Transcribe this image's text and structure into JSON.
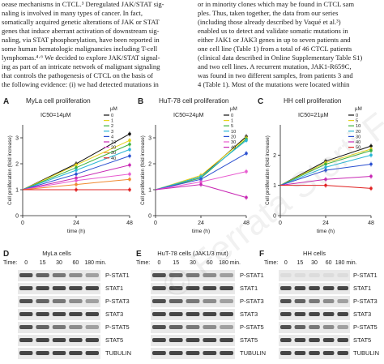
{
  "text": {
    "left_lines": [
      "oease mechanisms in CTCL.³ Deregulated JAK/STAT sig-",
      "naling is involved in many types of cancer. In fact,",
      "somatically acquired genetic alterations of JAK or STAT",
      "genes that induce aberrant activation of downstream sig-",
      "naling, via STAT phosphorylation, have been reported in",
      "some human hematologic malignancies including T-cell",
      "lymphomas.⁴·⁶ We decided to explore JAK/STAT signal-",
      "ing as part of an intricate network of malignant signaling",
      "that controls the pathogenesis of CTCL on the basis of",
      "the following evidence: (i) we had detected mutations in"
    ],
    "right_lines": [
      "or in minority clones which may be found in CTCL sam",
      "ples. Thus, taken together, the data from our series",
      "(including those already described by Vaqué et al.³)",
      "enabled us to detect and validate somatic mutations in",
      "either JAK1 or JAK3 genes in up to seven patients and",
      "one cell line (Table 1) from a total of 46 CTCL patients",
      "(clinical data described in Online Supplementary Table S1)",
      "and two cell lines. A recurrent mutation, JAK1-R659C,",
      "was found in two different samples, from patients 3 and",
      "4 (Table 1). Most of the mutations were located within"
    ],
    "watermark": "© Ferrata Storti Foundation"
  },
  "panels": {
    "A": {
      "letter": "A",
      "title": "MyLa cell proliferation",
      "ic50": "IC50=14µM",
      "ylabel": "Cell proliferation (fold increase)",
      "xlabel": "time (h)"
    },
    "B": {
      "letter": "B",
      "title": "HuT-78 cell proliferation",
      "ic50": "IC50=24µM",
      "ylabel": "Cell proliferation (fold increase)",
      "xlabel": "time (h)"
    },
    "C": {
      "letter": "C",
      "title": "HH cell proliferation",
      "ic50": "IC50=21µM",
      "ylabel": "Cell proliferation (fold increase)",
      "xlabel": "time (h)"
    },
    "D": {
      "letter": "D",
      "title": "MyLa cells",
      "time_label": "Time:",
      "times": [
        "0",
        "15",
        "30",
        "60",
        "180 min."
      ],
      "rows": [
        "P-STAT1",
        "STAT1",
        "P-STAT3",
        "STAT3",
        "P-STAT5",
        "STAT5",
        "TUBULIN"
      ]
    },
    "E": {
      "letter": "E",
      "title": "HuT-78 cells (JAK1/3 mut)",
      "time_label": "Time:",
      "times": [
        "0",
        "15",
        "30",
        "60",
        "180 min."
      ],
      "rows": [
        "P-STAT1",
        "STAT1",
        "P-STAT3",
        "STAT3",
        "P-STAT5",
        "STAT5",
        "TUBULIN"
      ]
    },
    "F": {
      "letter": "F",
      "title": "HH cells",
      "time_label": "Time:",
      "times": [
        "0",
        "15",
        "30",
        "60",
        "180 min."
      ],
      "rows": [
        "P-STAT1",
        "STAT1",
        "P-STAT3",
        "STAT3",
        "P-STAT5",
        "STAT5",
        "TUBULIN"
      ]
    }
  },
  "colors": {
    "black": "#111111",
    "red": "#e02020",
    "yellow": "#e6d21a",
    "green": "#3bb03b",
    "cyan": "#2bb6d6",
    "blue": "#2a4fd0",
    "pink": "#e85bd0",
    "orange": "#f08a30",
    "magenta": "#c828b4"
  },
  "chart_data": [
    {
      "type": "line",
      "panel": "A",
      "title": "MyLa cell proliferation",
      "ylabel": "Cell proliferation (fold increase)",
      "xlabel": "time (h)",
      "x": [
        0,
        24,
        48
      ],
      "ylim": [
        0,
        3.5
      ],
      "yticks": [
        0,
        1,
        2,
        3
      ],
      "legend_title": "µM",
      "annotation": "IC50=14µM",
      "series": [
        {
          "name": "0",
          "color": "#111111",
          "values": [
            1,
            2.0,
            3.15
          ]
        },
        {
          "name": "1",
          "color": "#e6d21a",
          "values": [
            1,
            1.95,
            2.9
          ]
        },
        {
          "name": "2",
          "color": "#3bb03b",
          "values": [
            1,
            1.85,
            2.75
          ]
        },
        {
          "name": "3",
          "color": "#2bb6d6",
          "values": [
            1,
            1.75,
            2.55
          ]
        },
        {
          "name": "4",
          "color": "#2a4fd0",
          "values": [
            1,
            1.6,
            2.3
          ]
        },
        {
          "name": "10",
          "color": "#c828b4",
          "values": [
            1,
            1.45,
            1.95
          ]
        },
        {
          "name": "20",
          "color": "#e85bd0",
          "values": [
            1,
            1.35,
            1.6
          ]
        },
        {
          "name": "30",
          "color": "#f08a30",
          "values": [
            1,
            1.2,
            1.4
          ]
        },
        {
          "name": "40",
          "color": "#e02020",
          "values": [
            1,
            1.0,
            1.0
          ]
        }
      ]
    },
    {
      "type": "line",
      "panel": "B",
      "title": "HuT-78 cell proliferation",
      "ylabel": "Cell proliferation (fold increase)",
      "xlabel": "time (h)",
      "x": [
        0,
        24,
        48
      ],
      "ylim": [
        0,
        3.5
      ],
      "yticks": [
        0,
        1,
        2,
        3
      ],
      "legend_title": "µM",
      "annotation": "IC50=24µM",
      "series": [
        {
          "name": "0",
          "color": "#111111",
          "values": [
            1,
            1.5,
            3.05
          ]
        },
        {
          "name": "1",
          "color": "#e6d21a",
          "values": [
            1,
            1.55,
            3.0
          ]
        },
        {
          "name": "5",
          "color": "#3bb03b",
          "values": [
            1,
            1.45,
            2.95
          ]
        },
        {
          "name": "10",
          "color": "#2bb6d6",
          "values": [
            1,
            1.5,
            2.9
          ]
        },
        {
          "name": "20",
          "color": "#2a4fd0",
          "values": [
            1,
            1.4,
            2.4
          ]
        },
        {
          "name": "30",
          "color": "#e85bd0",
          "values": [
            1,
            1.3,
            1.7
          ]
        },
        {
          "name": "40",
          "color": "#c828b4",
          "values": [
            1,
            1.2,
            0.7
          ]
        }
      ]
    },
    {
      "type": "line",
      "panel": "C",
      "title": "HH cell proliferation",
      "ylabel": "Cell proliferation (fold increase)",
      "xlabel": "time (h)",
      "x": [
        0,
        24,
        48
      ],
      "ylim": [
        0,
        3.0
      ],
      "yticks": [
        0,
        1,
        2
      ],
      "legend_title": "µM",
      "annotation": "IC50=21µM",
      "series": [
        {
          "name": "0",
          "color": "#111111",
          "values": [
            1,
            1.8,
            2.3
          ]
        },
        {
          "name": "5",
          "color": "#e6d21a",
          "values": [
            1,
            1.75,
            2.2
          ]
        },
        {
          "name": "10",
          "color": "#3bb03b",
          "values": [
            1,
            1.7,
            2.15
          ]
        },
        {
          "name": "20",
          "color": "#2bb6d6",
          "values": [
            1,
            1.6,
            2.0
          ]
        },
        {
          "name": "30",
          "color": "#2a4fd0",
          "values": [
            1,
            1.5,
            1.7
          ]
        },
        {
          "name": "40",
          "color": "#c828b4",
          "values": [
            1,
            1.2,
            1.3
          ]
        },
        {
          "name": "50",
          "color": "#e02020",
          "values": [
            1,
            1.0,
            0.9
          ]
        }
      ]
    }
  ]
}
